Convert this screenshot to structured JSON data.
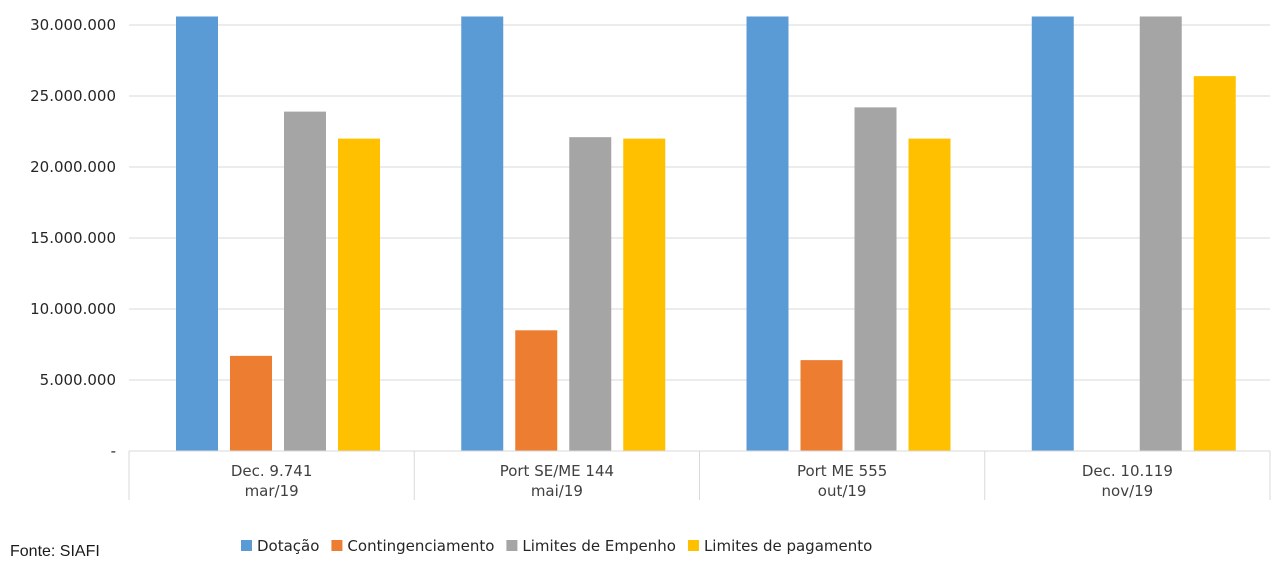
{
  "chart_data": {
    "type": "bar",
    "categories": [
      [
        "Dec. 9.741",
        "mar/19"
      ],
      [
        "Port SE/ME 144",
        "mai/19"
      ],
      [
        "Port ME 555",
        "out/19"
      ],
      [
        "Dec. 10.119",
        "nov/19"
      ]
    ],
    "series": [
      {
        "name": "Dotação",
        "color": "#5b9bd5",
        "values": [
          30600000,
          30600000,
          30600000,
          30600000
        ]
      },
      {
        "name": "Contingenciamento",
        "color": "#ed7d31",
        "values": [
          6700000,
          8500000,
          6400000,
          0
        ]
      },
      {
        "name": "Limites de Empenho",
        "color": "#a5a5a5",
        "values": [
          23900000,
          22100000,
          24200000,
          30600000
        ]
      },
      {
        "name": "Limites de pagamento",
        "color": "#ffc000",
        "values": [
          22000000,
          22000000,
          22000000,
          26400000
        ]
      }
    ],
    "y_ticks": [
      {
        "value": 0,
        "label": "-"
      },
      {
        "value": 5000000,
        "label": "5.000.000"
      },
      {
        "value": 10000000,
        "label": "10.000.000"
      },
      {
        "value": 15000000,
        "label": "15.000.000"
      },
      {
        "value": 20000000,
        "label": "20.000.000"
      },
      {
        "value": 25000000,
        "label": "25.000.000"
      },
      {
        "value": 30000000,
        "label": "30.000.000"
      }
    ],
    "ylim": [
      0,
      30600000
    ],
    "grid": true,
    "legend_position": "bottom"
  },
  "source_note": "Fonte: SIAFI"
}
